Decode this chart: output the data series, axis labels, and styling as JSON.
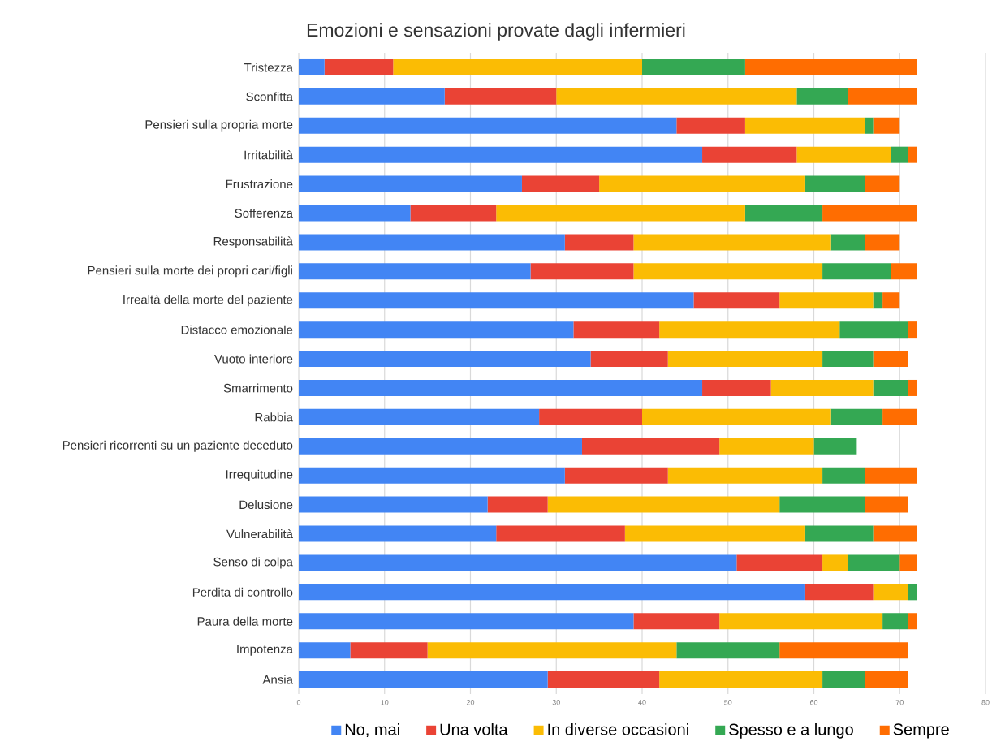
{
  "chart_data": {
    "type": "bar",
    "orientation": "horizontal",
    "stacked": true,
    "title": "Emozioni e sensazioni provate dagli infermieri",
    "categories": [
      "Tristezza",
      "Sconfitta",
      "Pensieri sulla propria morte",
      "Irritabilità",
      "Frustrazione",
      "Sofferenza",
      "Responsabilità",
      "Pensieri sulla morte dei propri cari/figli",
      "Irrealtà della morte del paziente",
      "Distacco emozionale",
      "Vuoto interiore",
      "Smarrimento",
      "Rabbia",
      "Pensieri ricorrenti su un paziente deceduto",
      "Irrequitudine",
      "Delusione",
      "Vulnerabilità",
      "Senso di colpa",
      "Perdita di controllo",
      "Paura della morte",
      "Impotenza",
      "Ansia"
    ],
    "series": [
      {
        "name": "No, mai",
        "color": "#4285f4",
        "values": [
          3,
          17,
          44,
          47,
          26,
          13,
          31,
          27,
          46,
          32,
          34,
          47,
          28,
          33,
          31,
          22,
          23,
          51,
          59,
          39,
          6,
          29
        ]
      },
      {
        "name": "Una volta",
        "color": "#ea4335",
        "values": [
          8,
          13,
          8,
          11,
          9,
          10,
          8,
          12,
          10,
          10,
          9,
          8,
          12,
          16,
          12,
          7,
          15,
          10,
          8,
          10,
          9,
          13
        ]
      },
      {
        "name": "In diverse occasioni",
        "color": "#fbbc04",
        "values": [
          29,
          28,
          14,
          11,
          24,
          29,
          23,
          22,
          11,
          21,
          18,
          12,
          22,
          11,
          18,
          27,
          21,
          3,
          4,
          19,
          29,
          19
        ]
      },
      {
        "name": "Spesso e a lungo",
        "color": "#34a853",
        "values": [
          12,
          6,
          1,
          2,
          7,
          9,
          4,
          8,
          1,
          8,
          6,
          4,
          6,
          5,
          5,
          10,
          8,
          6,
          1,
          3,
          12,
          5
        ]
      },
      {
        "name": "Sempre",
        "color": "#ff6d01",
        "values": [
          20,
          8,
          3,
          1,
          4,
          11,
          4,
          3,
          2,
          1,
          4,
          1,
          4,
          null,
          6,
          5,
          5,
          2,
          null,
          1,
          15,
          5
        ]
      }
    ],
    "xlim": [
      0,
      80
    ],
    "xticks": [
      0,
      10,
      20,
      30,
      40,
      50,
      60,
      70,
      80
    ],
    "grid": "x",
    "legend": "bottom"
  }
}
